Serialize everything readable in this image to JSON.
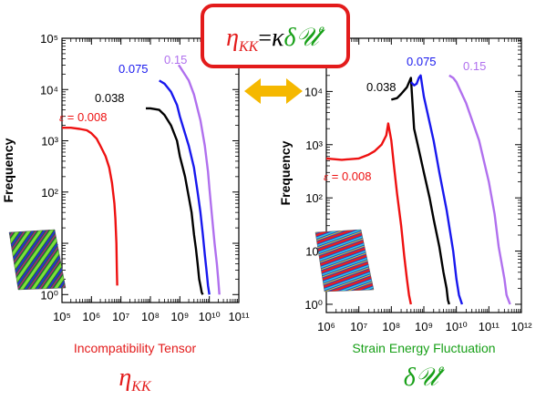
{
  "equation": {
    "lhs_symbol": "η",
    "lhs_sub": "KK",
    "equals": "=",
    "kappa": "κ",
    "delta": "δ",
    "U_symbol": "𝒰",
    "U_sup": "e"
  },
  "colors": {
    "s008": "#ee1111",
    "s038": "#000000",
    "s075": "#1818ee",
    "s015": "#b070ee",
    "arrow": "#f5b800",
    "box": "#e31b1b",
    "eta_text": "#e31b1b",
    "U_text": "#18a018"
  },
  "arrow_icon": "double-headed-arrow-icon",
  "chart_data": [
    {
      "type": "line",
      "xscale": "log",
      "yscale": "log",
      "xlim": [
        100000,
        100000000000
      ],
      "ylim": [
        0.7,
        100000
      ],
      "xticks": [
        "10⁵",
        "10⁶",
        "10⁷",
        "10⁸",
        "10⁹",
        "10¹⁰",
        "10¹¹"
      ],
      "yticks": [
        "10⁰",
        "10¹",
        "10²",
        "10³",
        "10⁴",
        "10⁵"
      ],
      "ylabel": "Frequency",
      "xlabel": "Incompatibility Tensor",
      "symbol": {
        "main": "η",
        "sub": "KK"
      },
      "series": [
        {
          "key": "s008",
          "name": "0.008",
          "label_prefix": "ε",
          "label_eq": " = ",
          "x": [
            100000,
            200000,
            400000,
            700000,
            1000000,
            1500000,
            2000000,
            3000000,
            4000000,
            5000000,
            6000000,
            6500000,
            7000000,
            7300000,
            7500000
          ],
          "y": [
            1800,
            1800,
            1700,
            1600,
            1400,
            1100,
            800,
            500,
            300,
            150,
            60,
            30,
            10,
            3,
            1.5
          ]
        },
        {
          "key": "s038",
          "name": "0.038",
          "x": [
            70000000,
            100000000,
            200000000,
            300000000,
            500000000,
            800000000,
            1000000000,
            1500000000,
            2000000000,
            2500000000,
            3000000000,
            3500000000,
            4000000000,
            4500000000,
            5000000000,
            5500000000,
            6000000000
          ],
          "y": [
            4300,
            4300,
            4000,
            3200,
            2000,
            1000,
            500,
            200,
            80,
            40,
            15,
            8,
            4,
            2,
            1.5,
            1.1,
            1
          ]
        },
        {
          "key": "s075",
          "name": "0.075",
          "x": [
            200000000,
            300000000,
            500000000,
            800000000,
            1000000000,
            2000000000,
            3000000000,
            4000000000,
            5000000000,
            6000000000,
            7000000000,
            8000000000,
            9000000000,
            10000000000
          ],
          "y": [
            15000,
            13000,
            9000,
            5000,
            3000,
            800,
            300,
            100,
            40,
            15,
            6,
            3,
            1.5,
            1
          ]
        },
        {
          "key": "s015",
          "name": "0.15",
          "x": [
            900000000,
            1000000000,
            2000000000,
            3000000000,
            5000000000,
            7000000000,
            9000000000,
            10000000000,
            12000000000,
            15000000000,
            18000000000,
            20000000000,
            22000000000
          ],
          "y": [
            30000,
            28000,
            15000,
            8000,
            2500,
            800,
            250,
            120,
            40,
            10,
            4,
            2,
            1
          ]
        }
      ]
    },
    {
      "type": "line",
      "xscale": "log",
      "yscale": "log",
      "xlim": [
        1000000,
        1000000000000
      ],
      "ylim": [
        0.7,
        100000
      ],
      "xticks": [
        "10⁶",
        "10⁷",
        "10⁸",
        "10⁹",
        "10¹⁰",
        "10¹¹",
        "10¹²"
      ],
      "yticks": [
        "10⁰",
        "10¹",
        "10²",
        "10³",
        "10⁴",
        "10⁵"
      ],
      "ylabel": "Frequency",
      "xlabel": "Strain Energy Fluctuation",
      "series": [
        {
          "key": "s008",
          "name": "0.008",
          "label_prefix": "ε",
          "label_eq": " = ",
          "x": [
            1000000,
            3000000,
            10000000,
            20000000,
            30000000,
            50000000,
            70000000,
            80000000,
            100000000,
            120000000,
            150000000,
            200000000,
            250000000,
            300000000,
            350000000,
            400000000
          ],
          "y": [
            550,
            520,
            550,
            650,
            750,
            1000,
            1500,
            2500,
            1200,
            400,
            120,
            30,
            8,
            3,
            1.5,
            1
          ]
        },
        {
          "key": "s038",
          "name": "0.038",
          "x": [
            100000000,
            150000000,
            200000000,
            300000000,
            400000000,
            500000000,
            700000000,
            1000000000,
            1500000000,
            2000000000,
            3000000000,
            4000000000,
            5000000000,
            5500000000,
            6000000000
          ],
          "y": [
            7000,
            7500,
            9000,
            12000,
            18000,
            2000,
            800,
            300,
            100,
            40,
            12,
            4,
            2,
            1.2,
            1
          ]
        },
        {
          "key": "s075",
          "name": "0.075",
          "x": [
            400000000,
            500000000,
            600000000,
            700000000,
            800000000,
            1000000000,
            2000000000,
            3000000000,
            5000000000,
            8000000000,
            10000000000,
            12000000000,
            15000000000
          ],
          "y": [
            15000,
            13000,
            14000,
            18000,
            20000,
            8000,
            1200,
            300,
            60,
            10,
            3,
            1.5,
            1
          ]
        },
        {
          "key": "s015",
          "name": "0.15",
          "x": [
            6000000000,
            8000000000,
            10000000000,
            20000000000,
            50000000000,
            100000000000,
            150000000000,
            200000000000,
            300000000000,
            350000000000,
            400000000000,
            450000000000
          ],
          "y": [
            20000,
            18000,
            15000,
            6000,
            1200,
            200,
            50,
            12,
            3,
            1.5,
            1.2,
            1
          ]
        }
      ]
    }
  ]
}
